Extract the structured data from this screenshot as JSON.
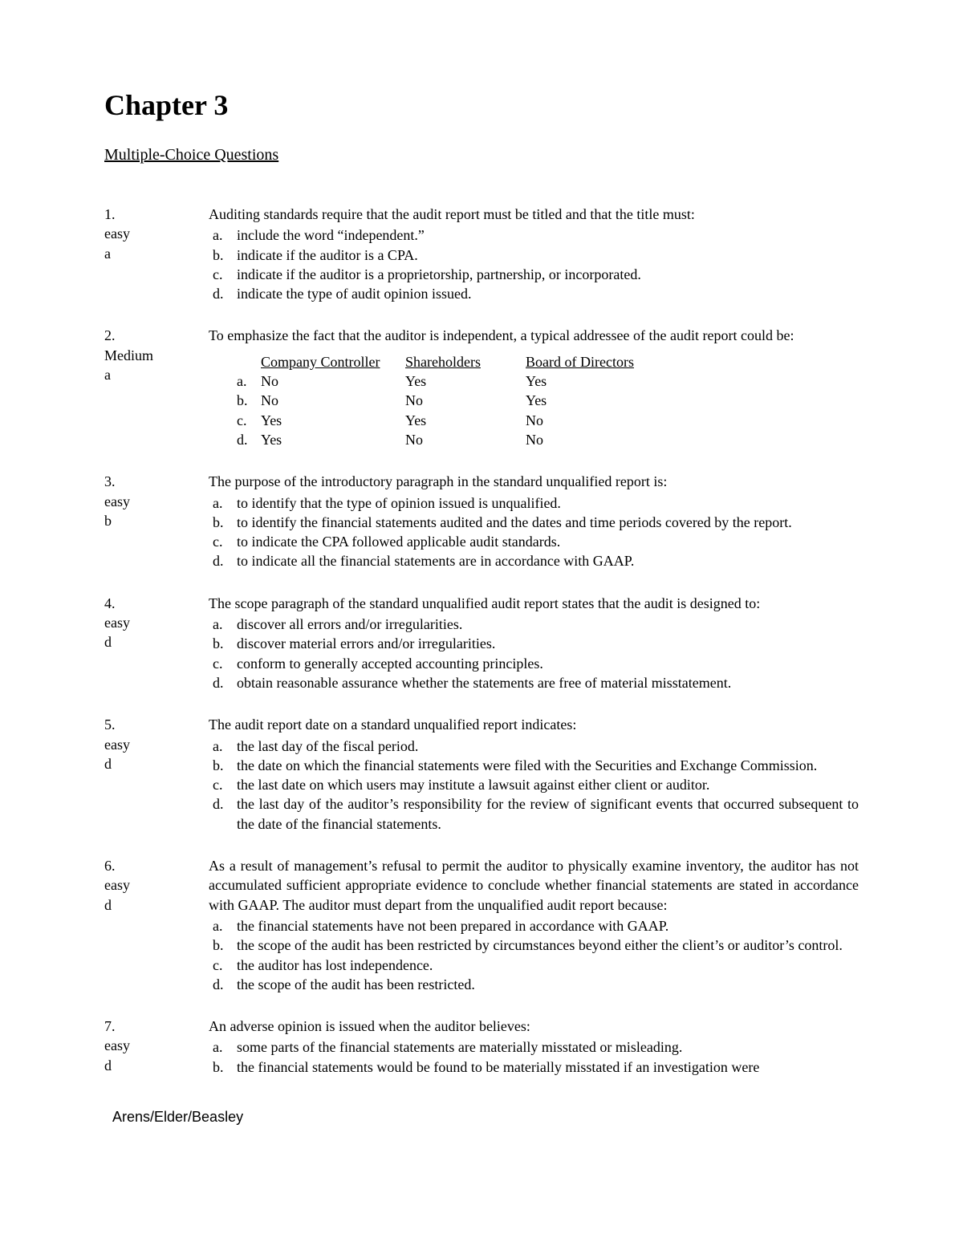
{
  "chapter_title": "Chapter 3",
  "section_title": "Multiple-Choice Questions",
  "footer": "Arens/Elder/Beasley",
  "questions": [
    {
      "num": "1.",
      "difficulty": "easy",
      "answer": "a",
      "stem": "Auditing standards require that the audit report must be titled and that the title must:",
      "options": [
        {
          "l": "a.",
          "t": "include the word “independent.”"
        },
        {
          "l": "b.",
          "t": "indicate if the auditor is a CPA."
        },
        {
          "l": "c.",
          "t": "indicate if the auditor is a proprietorship, partnership, or incorporated."
        },
        {
          "l": "d.",
          "t": "indicate the type of audit opinion issued."
        }
      ]
    },
    {
      "num": "2.",
      "difficulty": "Medium",
      "answer": "a",
      "stem": "To emphasize the fact that the auditor is independent, a typical addressee of the audit report could be:",
      "matrix": {
        "headers": [
          "Company Controller",
          "Shareholders",
          "Board of Directors"
        ],
        "rows": [
          {
            "l": "a.",
            "c": [
              "No",
              "Yes",
              "Yes"
            ]
          },
          {
            "l": "b.",
            "c": [
              "No",
              "No",
              "Yes"
            ]
          },
          {
            "l": "c.",
            "c": [
              "Yes",
              "Yes",
              "No"
            ]
          },
          {
            "l": "d.",
            "c": [
              "Yes",
              "No",
              "No"
            ]
          }
        ]
      }
    },
    {
      "num": "3.",
      "difficulty": "easy",
      "answer": "b",
      "stem": "The purpose of the introductory paragraph in the standard unqualified report is:",
      "options": [
        {
          "l": "a.",
          "t": "to identify that the type of opinion issued is unqualified."
        },
        {
          "l": "b.",
          "t": "to identify the financial statements audited and the dates and time periods covered by the report."
        },
        {
          "l": "c.",
          "t": "to indicate the CPA followed applicable audit standards."
        },
        {
          "l": "d.",
          "t": "to indicate all the financial statements are in accordance with GAAP."
        }
      ]
    },
    {
      "num": "4.",
      "difficulty": "easy",
      "answer": "d",
      "stem": "The scope paragraph of the standard unqualified audit report states that the audit is designed to:",
      "options": [
        {
          "l": "a.",
          "t": "discover all errors and/or irregularities."
        },
        {
          "l": "b.",
          "t": "discover material errors and/or irregularities."
        },
        {
          "l": "c.",
          "t": "conform to generally accepted accounting principles."
        },
        {
          "l": "d.",
          "t": "obtain reasonable assurance whether the statements are free of material misstatement."
        }
      ]
    },
    {
      "num": "5.",
      "difficulty": "easy",
      "answer": "d",
      "stem": "The audit report date on a standard unqualified report indicates:",
      "options": [
        {
          "l": "a.",
          "t": "the last day of the fiscal period."
        },
        {
          "l": "b.",
          "t": "the date on which the financial statements were filed with the Securities and Exchange Commission."
        },
        {
          "l": "c.",
          "t": "the last date on which users may institute a lawsuit against either client or auditor."
        },
        {
          "l": "d.",
          "t": "the last day of the auditor’s responsibility for the review of significant events that occurred subsequent to the date of the financial statements."
        }
      ]
    },
    {
      "num": "6.",
      "difficulty": "easy",
      "answer": "d",
      "stem": "As a result of management’s refusal to permit the auditor to physically examine inventory, the auditor has not accumulated sufficient appropriate evidence to conclude whether financial statements are stated in accordance with GAAP. The auditor must depart from the unqualified audit report because:",
      "options": [
        {
          "l": "a.",
          "t": "the financial statements have not been prepared in accordance with GAAP."
        },
        {
          "l": "b.",
          "t": "the scope of the audit has been restricted by circumstances beyond either the client’s or auditor’s control."
        },
        {
          "l": "c.",
          "t": "the auditor has lost independence."
        },
        {
          "l": "d.",
          "t": "the scope of the audit has been restricted."
        }
      ]
    },
    {
      "num": "7.",
      "difficulty": "easy",
      "answer": "d",
      "stem": "An adverse opinion is issued when the auditor believes:",
      "options": [
        {
          "l": "a.",
          "t": "some parts of the financial statements are materially misstated or misleading."
        },
        {
          "l": "b.",
          "t": "the financial statements would be found to be materially misstated if an investigation were"
        }
      ]
    }
  ]
}
